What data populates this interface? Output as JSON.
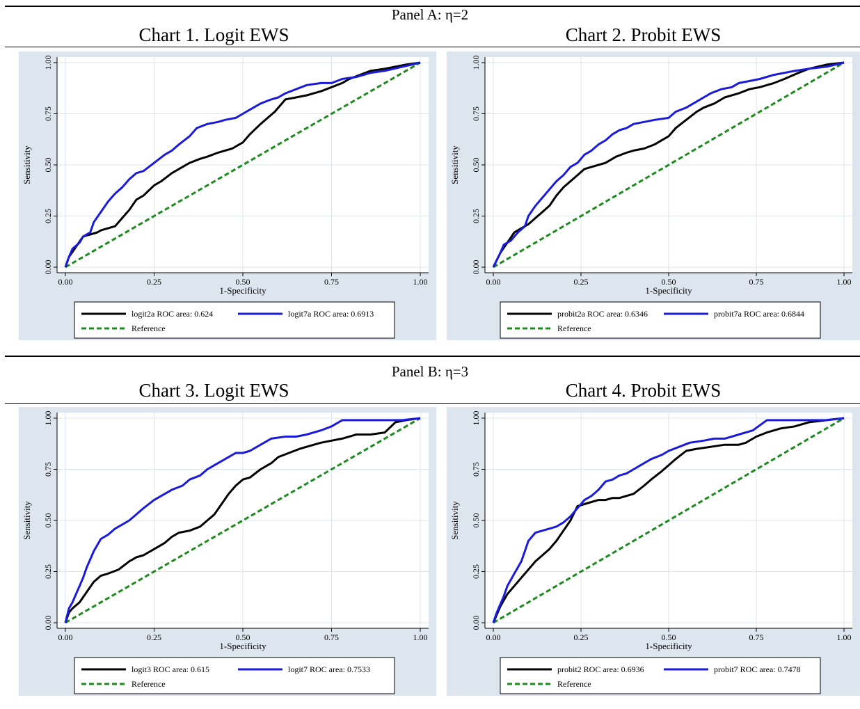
{
  "panels": [
    {
      "title": "Panel A: η=2"
    },
    {
      "title": "Panel B: η=3"
    }
  ],
  "colors": {
    "background": "#dde5ee",
    "plot": "#ffffff",
    "grid": "#dce4ec",
    "model2": "#000000",
    "model7": "#1a1adc",
    "reference": "#1c8a1c"
  },
  "chart_data": [
    {
      "type": "line",
      "title": "Chart 1. Logit EWS",
      "xlabel": "1-Specificity",
      "ylabel": "Sensitivity",
      "xlim": [
        0,
        1
      ],
      "ylim": [
        0,
        1
      ],
      "xticks": [
        "0.00",
        "0.25",
        "0.50",
        "0.75",
        "1.00"
      ],
      "yticks": [
        "0.00",
        "0.25",
        "0.50",
        "0.75",
        "1.00"
      ],
      "grid": true,
      "legend_position": "bottom",
      "series": [
        {
          "name": "logit2a ROC area: 0.624",
          "color": "#000000",
          "style": "solid",
          "x": [
            0,
            0.01,
            0.03,
            0.05,
            0.07,
            0.09,
            0.1,
            0.12,
            0.14,
            0.16,
            0.18,
            0.2,
            0.22,
            0.25,
            0.27,
            0.3,
            0.32,
            0.35,
            0.38,
            0.4,
            0.43,
            0.45,
            0.47,
            0.5,
            0.52,
            0.55,
            0.57,
            0.59,
            0.62,
            0.65,
            0.68,
            0.7,
            0.72,
            0.75,
            0.78,
            0.8,
            0.83,
            0.86,
            0.9,
            0.93,
            0.96,
            1
          ],
          "y": [
            0,
            0.05,
            0.1,
            0.15,
            0.16,
            0.17,
            0.18,
            0.19,
            0.2,
            0.24,
            0.28,
            0.33,
            0.35,
            0.4,
            0.42,
            0.46,
            0.48,
            0.51,
            0.53,
            0.54,
            0.56,
            0.57,
            0.58,
            0.61,
            0.65,
            0.7,
            0.73,
            0.76,
            0.82,
            0.83,
            0.84,
            0.85,
            0.86,
            0.88,
            0.9,
            0.92,
            0.94,
            0.96,
            0.97,
            0.98,
            0.99,
            1
          ]
        },
        {
          "name": "logit7a ROC area: 0.6913",
          "color": "#1a1adc",
          "style": "solid",
          "x": [
            0,
            0.01,
            0.02,
            0.04,
            0.05,
            0.07,
            0.08,
            0.1,
            0.12,
            0.14,
            0.16,
            0.18,
            0.2,
            0.22,
            0.25,
            0.28,
            0.3,
            0.32,
            0.35,
            0.37,
            0.4,
            0.43,
            0.45,
            0.48,
            0.5,
            0.52,
            0.55,
            0.58,
            0.6,
            0.62,
            0.65,
            0.68,
            0.72,
            0.75,
            0.78,
            0.82,
            0.86,
            0.9,
            0.95,
            1
          ],
          "y": [
            0,
            0.05,
            0.09,
            0.12,
            0.15,
            0.17,
            0.22,
            0.27,
            0.32,
            0.36,
            0.39,
            0.43,
            0.46,
            0.47,
            0.51,
            0.55,
            0.57,
            0.6,
            0.64,
            0.68,
            0.7,
            0.71,
            0.72,
            0.73,
            0.75,
            0.77,
            0.8,
            0.82,
            0.83,
            0.85,
            0.87,
            0.89,
            0.9,
            0.9,
            0.92,
            0.93,
            0.95,
            0.96,
            0.98,
            1
          ]
        },
        {
          "name": "Reference",
          "color": "#1c8a1c",
          "style": "dashed",
          "x": [
            0,
            1
          ],
          "y": [
            0,
            1
          ]
        }
      ]
    },
    {
      "type": "line",
      "title": "Chart 2. Probit EWS",
      "xlabel": "1-Specificity",
      "ylabel": "Sensitivity",
      "xlim": [
        0,
        1
      ],
      "ylim": [
        0,
        1
      ],
      "xticks": [
        "0.00",
        "0.25",
        "0.50",
        "0.75",
        "1.00"
      ],
      "yticks": [
        "0.00",
        "0.25",
        "0.50",
        "0.75",
        "1.00"
      ],
      "grid": true,
      "legend_position": "bottom",
      "series": [
        {
          "name": "probit2a ROC area: 0.6346",
          "color": "#000000",
          "style": "solid",
          "x": [
            0,
            0.02,
            0.04,
            0.06,
            0.08,
            0.1,
            0.12,
            0.14,
            0.16,
            0.18,
            0.2,
            0.22,
            0.24,
            0.26,
            0.28,
            0.3,
            0.32,
            0.35,
            0.38,
            0.4,
            0.43,
            0.46,
            0.5,
            0.52,
            0.55,
            0.58,
            0.6,
            0.63,
            0.66,
            0.7,
            0.73,
            0.76,
            0.8,
            0.83,
            0.87,
            0.9,
            0.95,
            1
          ],
          "y": [
            0,
            0.07,
            0.12,
            0.17,
            0.19,
            0.21,
            0.24,
            0.27,
            0.3,
            0.35,
            0.39,
            0.42,
            0.45,
            0.48,
            0.49,
            0.5,
            0.51,
            0.54,
            0.56,
            0.57,
            0.58,
            0.6,
            0.64,
            0.68,
            0.72,
            0.76,
            0.78,
            0.8,
            0.83,
            0.85,
            0.87,
            0.88,
            0.9,
            0.92,
            0.95,
            0.97,
            0.99,
            1
          ]
        },
        {
          "name": "probit7a ROC area: 0.6844",
          "color": "#1a1adc",
          "style": "solid",
          "x": [
            0,
            0.02,
            0.03,
            0.05,
            0.07,
            0.09,
            0.1,
            0.12,
            0.14,
            0.16,
            0.18,
            0.2,
            0.22,
            0.24,
            0.26,
            0.28,
            0.3,
            0.32,
            0.34,
            0.36,
            0.38,
            0.4,
            0.43,
            0.46,
            0.5,
            0.52,
            0.55,
            0.58,
            0.6,
            0.62,
            0.65,
            0.68,
            0.7,
            0.73,
            0.76,
            0.8,
            0.83,
            0.86,
            0.9,
            0.95,
            1
          ],
          "y": [
            0,
            0.07,
            0.11,
            0.13,
            0.17,
            0.2,
            0.25,
            0.3,
            0.34,
            0.38,
            0.42,
            0.45,
            0.49,
            0.51,
            0.55,
            0.57,
            0.6,
            0.62,
            0.65,
            0.67,
            0.68,
            0.7,
            0.71,
            0.72,
            0.73,
            0.76,
            0.78,
            0.81,
            0.83,
            0.85,
            0.87,
            0.88,
            0.9,
            0.91,
            0.92,
            0.94,
            0.95,
            0.96,
            0.97,
            0.98,
            1
          ]
        },
        {
          "name": "Reference",
          "color": "#1c8a1c",
          "style": "dashed",
          "x": [
            0,
            1
          ],
          "y": [
            0,
            1
          ]
        }
      ]
    },
    {
      "type": "line",
      "title": "Chart 3. Logit EWS",
      "xlabel": "1-Specificity",
      "ylabel": "Sensitivity",
      "xlim": [
        0,
        1
      ],
      "ylim": [
        0,
        1
      ],
      "xticks": [
        "0.00",
        "0.25",
        "0.50",
        "0.75",
        "1.00"
      ],
      "yticks": [
        "0.00",
        "0.25",
        "0.50",
        "0.75",
        "1.00"
      ],
      "grid": true,
      "legend_position": "bottom",
      "series": [
        {
          "name": "logit3 ROC area: 0.615",
          "color": "#000000",
          "style": "solid",
          "x": [
            0,
            0.01,
            0.02,
            0.04,
            0.06,
            0.08,
            0.1,
            0.12,
            0.15,
            0.18,
            0.2,
            0.22,
            0.25,
            0.28,
            0.3,
            0.32,
            0.35,
            0.38,
            0.4,
            0.42,
            0.44,
            0.46,
            0.48,
            0.5,
            0.52,
            0.55,
            0.58,
            0.6,
            0.63,
            0.66,
            0.7,
            0.72,
            0.75,
            0.78,
            0.82,
            0.86,
            0.9,
            0.93,
            0.96,
            1
          ],
          "y": [
            0,
            0.05,
            0.07,
            0.1,
            0.15,
            0.2,
            0.23,
            0.24,
            0.26,
            0.3,
            0.32,
            0.33,
            0.36,
            0.39,
            0.42,
            0.44,
            0.45,
            0.47,
            0.5,
            0.53,
            0.58,
            0.63,
            0.67,
            0.7,
            0.71,
            0.75,
            0.78,
            0.81,
            0.83,
            0.85,
            0.87,
            0.88,
            0.89,
            0.9,
            0.92,
            0.92,
            0.93,
            0.98,
            0.99,
            1
          ]
        },
        {
          "name": "logit7 ROC area: 0.7533",
          "color": "#1a1adc",
          "style": "solid",
          "x": [
            0,
            0.01,
            0.02,
            0.03,
            0.04,
            0.05,
            0.06,
            0.07,
            0.08,
            0.09,
            0.1,
            0.12,
            0.14,
            0.16,
            0.18,
            0.2,
            0.22,
            0.25,
            0.28,
            0.3,
            0.33,
            0.35,
            0.38,
            0.4,
            0.42,
            0.45,
            0.48,
            0.5,
            0.52,
            0.55,
            0.58,
            0.62,
            0.65,
            0.68,
            0.72,
            0.75,
            0.78,
            0.85,
            0.9,
            0.95,
            1
          ],
          "y": [
            0,
            0.07,
            0.1,
            0.14,
            0.18,
            0.22,
            0.27,
            0.31,
            0.35,
            0.38,
            0.41,
            0.43,
            0.46,
            0.48,
            0.5,
            0.53,
            0.56,
            0.6,
            0.63,
            0.65,
            0.67,
            0.7,
            0.72,
            0.75,
            0.77,
            0.8,
            0.83,
            0.83,
            0.84,
            0.87,
            0.9,
            0.91,
            0.91,
            0.92,
            0.94,
            0.96,
            0.99,
            0.99,
            0.99,
            0.99,
            1
          ]
        },
        {
          "name": "Reference",
          "color": "#1c8a1c",
          "style": "dashed",
          "x": [
            0,
            1
          ],
          "y": [
            0,
            1
          ]
        }
      ]
    },
    {
      "type": "line",
      "title": "Chart 4. Probit EWS",
      "xlabel": "1-Specificity",
      "ylabel": "Sensitivity",
      "xlim": [
        0,
        1
      ],
      "ylim": [
        0,
        1
      ],
      "xticks": [
        "0.00",
        "0.25",
        "0.50",
        "0.75",
        "1.00"
      ],
      "yticks": [
        "0.00",
        "0.25",
        "0.50",
        "0.75",
        "1.00"
      ],
      "grid": true,
      "legend_position": "bottom",
      "series": [
        {
          "name": "probit2 ROC area: 0.6936",
          "color": "#000000",
          "style": "solid",
          "x": [
            0,
            0.02,
            0.04,
            0.06,
            0.08,
            0.1,
            0.12,
            0.14,
            0.16,
            0.18,
            0.2,
            0.22,
            0.24,
            0.26,
            0.28,
            0.3,
            0.32,
            0.34,
            0.36,
            0.38,
            0.4,
            0.43,
            0.45,
            0.48,
            0.5,
            0.52,
            0.55,
            0.58,
            0.62,
            0.66,
            0.7,
            0.72,
            0.75,
            0.78,
            0.82,
            0.86,
            0.9,
            0.95,
            1
          ],
          "y": [
            0,
            0.08,
            0.14,
            0.18,
            0.22,
            0.26,
            0.3,
            0.33,
            0.36,
            0.4,
            0.45,
            0.5,
            0.57,
            0.58,
            0.59,
            0.6,
            0.6,
            0.61,
            0.61,
            0.62,
            0.63,
            0.67,
            0.7,
            0.74,
            0.77,
            0.8,
            0.84,
            0.85,
            0.86,
            0.87,
            0.87,
            0.88,
            0.91,
            0.93,
            0.95,
            0.96,
            0.98,
            0.99,
            1
          ]
        },
        {
          "name": "probit7 ROC area: 0.7478",
          "color": "#1a1adc",
          "style": "solid",
          "x": [
            0,
            0.01,
            0.02,
            0.03,
            0.04,
            0.06,
            0.08,
            0.09,
            0.1,
            0.12,
            0.14,
            0.16,
            0.18,
            0.2,
            0.22,
            0.24,
            0.26,
            0.28,
            0.3,
            0.32,
            0.34,
            0.36,
            0.38,
            0.4,
            0.43,
            0.45,
            0.48,
            0.5,
            0.53,
            0.56,
            0.6,
            0.63,
            0.66,
            0.7,
            0.74,
            0.78,
            0.85,
            0.9,
            0.95,
            1
          ],
          "y": [
            0,
            0.05,
            0.09,
            0.13,
            0.18,
            0.24,
            0.3,
            0.35,
            0.4,
            0.44,
            0.45,
            0.46,
            0.47,
            0.49,
            0.52,
            0.56,
            0.6,
            0.62,
            0.65,
            0.69,
            0.7,
            0.72,
            0.73,
            0.75,
            0.78,
            0.8,
            0.82,
            0.84,
            0.86,
            0.88,
            0.89,
            0.9,
            0.9,
            0.92,
            0.94,
            0.99,
            0.99,
            0.99,
            0.99,
            1
          ]
        },
        {
          "name": "Reference",
          "color": "#1c8a1c",
          "style": "dashed",
          "x": [
            0,
            1
          ],
          "y": [
            0,
            1
          ]
        }
      ]
    }
  ]
}
